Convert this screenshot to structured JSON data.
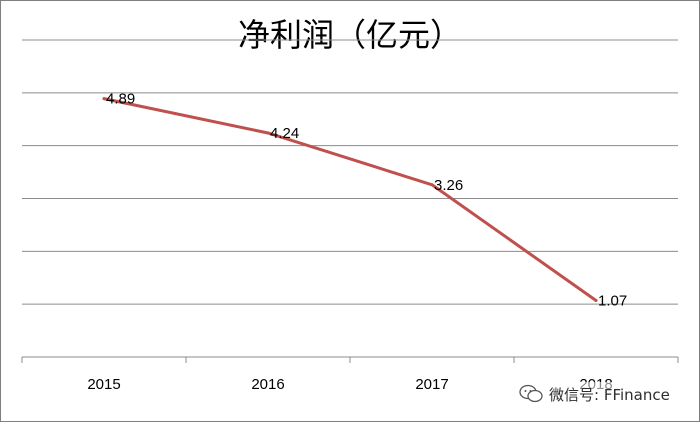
{
  "chart_data": {
    "type": "line",
    "title": "净利润（亿元）",
    "categories": [
      "2015",
      "2016",
      "2017",
      "2018"
    ],
    "series": [
      {
        "values": [
          4.89,
          4.24,
          3.26,
          1.07
        ]
      }
    ],
    "ylim": [
      0,
      6
    ],
    "y_tick_labels_shown": false,
    "grid": true,
    "legend": "none",
    "colors": {
      "line": "#c0504d",
      "grid": "#8c8c8c"
    }
  },
  "watermark": {
    "text": "微信号: FFinance",
    "icon": "wechat-icon"
  }
}
